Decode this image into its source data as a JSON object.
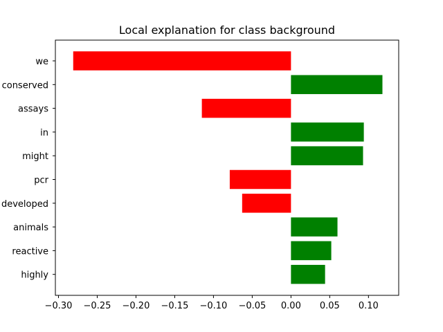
{
  "chart_data": {
    "type": "bar",
    "orientation": "horizontal",
    "title": "Local explanation for class background",
    "xlabel": "",
    "ylabel": "",
    "categories": [
      "we",
      "conserved",
      "assays",
      "in",
      "might",
      "pcr",
      "developed",
      "animals",
      "reactive",
      "highly"
    ],
    "values": [
      -0.281,
      0.118,
      -0.115,
      0.094,
      0.093,
      -0.079,
      -0.063,
      0.06,
      0.052,
      0.044
    ],
    "xlim": [
      -0.304,
      0.139
    ],
    "xticks": [
      -0.3,
      -0.25,
      -0.2,
      -0.15,
      -0.1,
      -0.05,
      0.0,
      0.05,
      0.1
    ],
    "xtick_labels": [
      "−0.30",
      "−0.25",
      "−0.20",
      "−0.15",
      "−0.10",
      "−0.05",
      "0.00",
      "0.05",
      "0.10"
    ],
    "grid": false,
    "colors": {
      "positive": "#008000",
      "negative": "#ff0000"
    }
  }
}
